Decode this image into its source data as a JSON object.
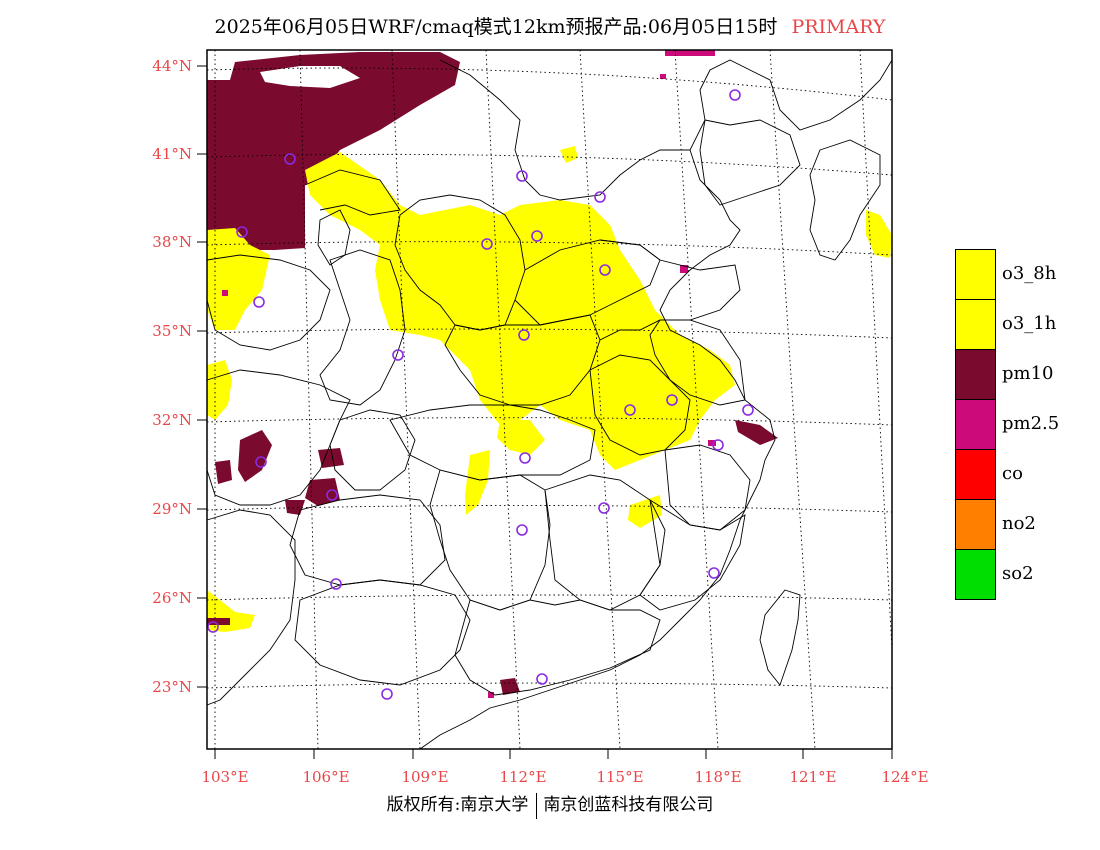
{
  "title": {
    "main": "2025年06月05日WRF/cmaq模式12km预报产品:06月05日15时",
    "tag": "PRIMARY"
  },
  "axes": {
    "lat_labels": [
      "44°N",
      "41°N",
      "38°N",
      "35°N",
      "32°N",
      "29°N",
      "26°N",
      "23°N"
    ],
    "lon_labels": [
      "103°E",
      "106°E",
      "109°E",
      "112°E",
      "115°E",
      "118°E",
      "121°E",
      "124°E"
    ]
  },
  "legend": {
    "items": [
      {
        "label": "o3_8h",
        "color": "#ffff00"
      },
      {
        "label": "o3_1h",
        "color": "#ffff00"
      },
      {
        "label": "pm10",
        "color": "#7a0a2e"
      },
      {
        "label": "pm2.5",
        "color": "#cc0a7a"
      },
      {
        "label": "co",
        "color": "#ff0000"
      },
      {
        "label": "no2",
        "color": "#ff8000"
      },
      {
        "label": "so2",
        "color": "#00dd00"
      }
    ]
  },
  "footer": {
    "left": "版权所有:南京大学",
    "right": "南京创蓝科技有限公司"
  },
  "colors": {
    "axis_text": "#e8474a",
    "o3": "#ffff00",
    "pm10": "#7a0a2e",
    "pm25": "#cc0a7a",
    "station_marker": "#8a2be2"
  }
}
